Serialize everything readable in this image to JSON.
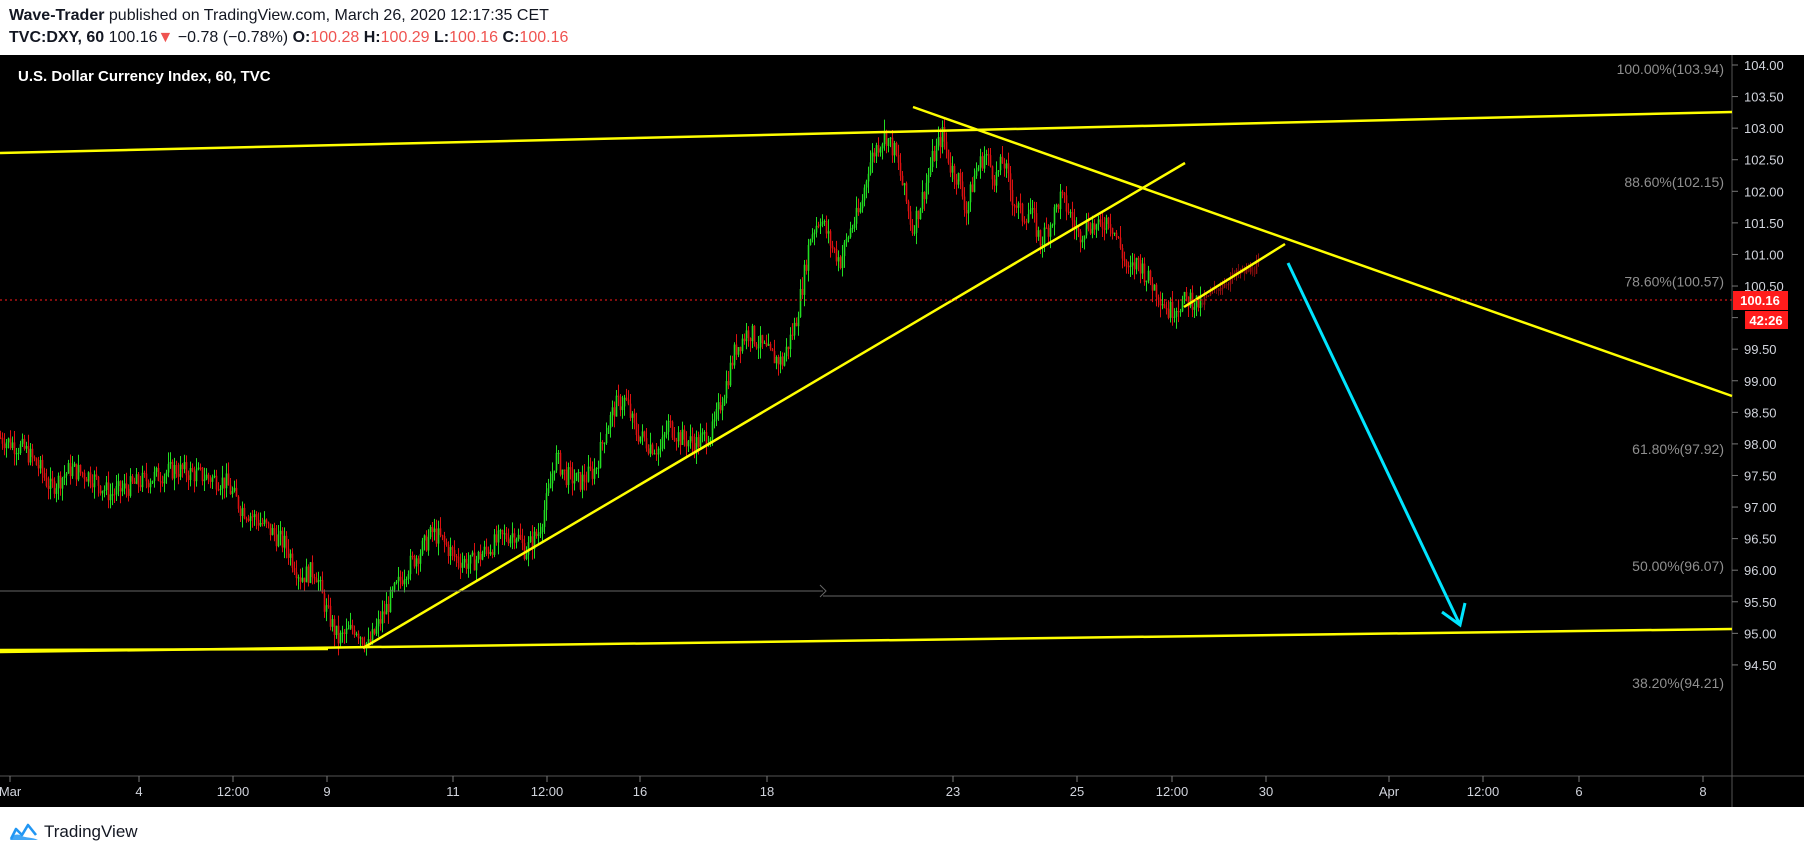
{
  "header": {
    "author": "Wave-Trader",
    "published_text": "published on TradingView.com, March 26, 2020 12:17:35 CET",
    "symbol": "TVC:DXY, 60",
    "last": "100.16",
    "change_arrow": "▼",
    "change": "−0.78 (−0.78%)",
    "o_label": "O:",
    "o_value": "100.28",
    "h_label": "H:",
    "h_value": "100.29",
    "l_label": "L:",
    "l_value": "100.16",
    "c_label": "C:",
    "c_value": "100.16"
  },
  "footer": {
    "brand": "TradingView"
  },
  "colors": {
    "background": "#000000",
    "up_candle": "#22dd22",
    "down_candle": "#dd1111",
    "trend_lines": "#ffff00",
    "arrow": "#00e5ff",
    "price_marker": "#ff1c1c"
  },
  "chart_data": {
    "type": "candlestick",
    "title": "U.S. Dollar Currency Index, 60, TVC",
    "ylim": [
      94.21,
      104.25
    ],
    "y_ticks": [
      "104.00",
      "103.50",
      "103.00",
      "102.50",
      "102.00",
      "101.50",
      "101.00",
      "100.50",
      "100.00",
      "99.50",
      "99.00",
      "98.50",
      "98.00",
      "97.50",
      "97.00",
      "96.50",
      "96.00",
      "95.50",
      "95.00",
      "94.50"
    ],
    "x_ticks": [
      "Mar",
      "4",
      "12:00",
      "9",
      "11",
      "12:00",
      "16",
      "18",
      "23",
      "25",
      "12:00",
      "30",
      "Apr",
      "12:00",
      "6",
      "8"
    ],
    "last_price_label": "100.16",
    "countdown_label": "42:26",
    "fib_levels": [
      {
        "label": "100.00%(103.94)",
        "value": 103.94
      },
      {
        "label": "88.60%(102.15)",
        "value": 102.15
      },
      {
        "label": "78.60%(100.57)",
        "value": 100.57
      },
      {
        "label": "61.80%(97.92)",
        "value": 97.92
      },
      {
        "label": "50.00%(96.07)",
        "value": 96.07
      },
      {
        "label": "38.20%(94.21)",
        "value": 94.21
      }
    ],
    "price_path": [
      [
        0,
        98.1
      ],
      [
        25,
        97.9
      ],
      [
        40,
        97.6
      ],
      [
        50,
        97.3
      ],
      [
        70,
        97.6
      ],
      [
        90,
        97.5
      ],
      [
        110,
        97.2
      ],
      [
        140,
        97.4
      ],
      [
        175,
        97.6
      ],
      [
        200,
        97.5
      ],
      [
        225,
        97.4
      ],
      [
        240,
        97.0
      ],
      [
        265,
        96.7
      ],
      [
        285,
        96.4
      ],
      [
        300,
        95.9
      ],
      [
        315,
        96.0
      ],
      [
        325,
        95.4
      ],
      [
        338,
        94.9
      ],
      [
        355,
        95.1
      ],
      [
        368,
        94.8
      ],
      [
        380,
        95.2
      ],
      [
        392,
        95.6
      ],
      [
        405,
        96.0
      ],
      [
        420,
        96.3
      ],
      [
        432,
        96.6
      ],
      [
        440,
        96.5
      ],
      [
        455,
        96.2
      ],
      [
        470,
        96.1
      ],
      [
        485,
        96.3
      ],
      [
        500,
        96.5
      ],
      [
        515,
        96.6
      ],
      [
        525,
        96.3
      ],
      [
        538,
        96.6
      ],
      [
        548,
        97.2
      ],
      [
        555,
        97.8
      ],
      [
        565,
        97.5
      ],
      [
        580,
        97.4
      ],
      [
        595,
        97.6
      ],
      [
        605,
        98.2
      ],
      [
        615,
        98.6
      ],
      [
        625,
        98.7
      ],
      [
        635,
        98.2
      ],
      [
        648,
        98.0
      ],
      [
        660,
        97.9
      ],
      [
        668,
        98.3
      ],
      [
        680,
        98.1
      ],
      [
        695,
        98.0
      ],
      [
        712,
        98.2
      ],
      [
        725,
        98.9
      ],
      [
        735,
        99.5
      ],
      [
        748,
        99.8
      ],
      [
        758,
        99.6
      ],
      [
        770,
        99.4
      ],
      [
        782,
        99.3
      ],
      [
        795,
        99.9
      ],
      [
        803,
        100.6
      ],
      [
        810,
        101.3
      ],
      [
        820,
        101.6
      ],
      [
        832,
        101.1
      ],
      [
        840,
        100.9
      ],
      [
        850,
        101.4
      ],
      [
        860,
        101.7
      ],
      [
        868,
        102.4
      ],
      [
        876,
        102.7
      ],
      [
        885,
        102.9
      ],
      [
        895,
        102.6
      ],
      [
        905,
        101.9
      ],
      [
        912,
        101.4
      ],
      [
        922,
        101.9
      ],
      [
        932,
        102.5
      ],
      [
        942,
        102.9
      ],
      [
        950,
        102.4
      ],
      [
        958,
        102.2
      ],
      [
        966,
        101.7
      ],
      [
        975,
        102.3
      ],
      [
        985,
        102.6
      ],
      [
        995,
        102.2
      ],
      [
        1003,
        102.5
      ],
      [
        1012,
        101.9
      ],
      [
        1022,
        101.6
      ],
      [
        1030,
        101.7
      ],
      [
        1040,
        101.2
      ],
      [
        1050,
        101.5
      ],
      [
        1060,
        101.9
      ],
      [
        1068,
        101.7
      ],
      [
        1078,
        101.3
      ],
      [
        1088,
        101.5
      ],
      [
        1098,
        101.4
      ],
      [
        1108,
        101.6
      ],
      [
        1118,
        101.2
      ],
      [
        1128,
        100.7
      ],
      [
        1138,
        100.9
      ],
      [
        1148,
        100.6
      ],
      [
        1158,
        100.4
      ],
      [
        1168,
        100.1
      ],
      [
        1178,
        100.2
      ],
      [
        1190,
        100.3
      ],
      [
        1200,
        100.2
      ]
    ],
    "projection_path": [
      [
        1200,
        100.2
      ],
      [
        1215,
        100.45
      ],
      [
        1228,
        100.6
      ],
      [
        1240,
        100.7
      ],
      [
        1250,
        100.75
      ],
      [
        1260,
        100.85
      ]
    ]
  }
}
